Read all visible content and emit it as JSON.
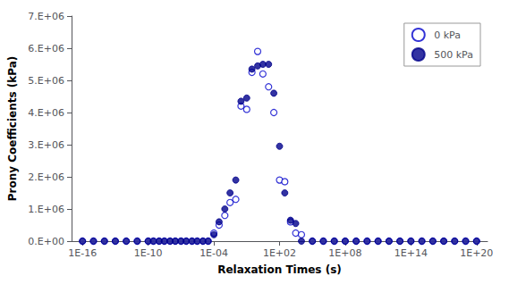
{
  "chart_data": {
    "type": "scatter",
    "xlabel": "Relaxation Times (s)",
    "ylabel": "Prony Coefficients (kPa)",
    "log": "x",
    "grid": false,
    "legend": "upper right",
    "xlim": [
      1e-17,
      1e+21
    ],
    "xticks": [
      {
        "value": 1e-16,
        "label": "1E-16"
      },
      {
        "value": 1e-10,
        "label": "1E-10"
      },
      {
        "value": 0.0001,
        "label": "1E-04"
      },
      {
        "value": 100.0,
        "label": "1E+02"
      },
      {
        "value": 100000000.0,
        "label": "1E+08"
      },
      {
        "value": 100000000000000.0,
        "label": "1E+14"
      },
      {
        "value": 1e+20,
        "label": "1E+20"
      }
    ],
    "ylim": [
      0,
      7000000.0
    ],
    "yticks": [
      {
        "value": 0,
        "label": "0.E+00"
      },
      {
        "value": 1000000.0,
        "label": "1.E+06"
      },
      {
        "value": 2000000.0,
        "label": "2.E+06"
      },
      {
        "value": 3000000.0,
        "label": "3.E+06"
      },
      {
        "value": 4000000.0,
        "label": "4.E+06"
      },
      {
        "value": 5000000.0,
        "label": "5.E+06"
      },
      {
        "value": 6000000.0,
        "label": "6.E+06"
      },
      {
        "value": 7000000.0,
        "label": "7.E+06"
      }
    ],
    "x": [
      1e-16,
      1e-15,
      1e-14,
      1e-13,
      1e-12,
      1e-11,
      1e-10,
      3e-10,
      1e-09,
      3e-09,
      1e-08,
      3e-08,
      1e-07,
      3e-07,
      1e-06,
      3e-06,
      1e-05,
      3e-05,
      0.0001,
      0.0003,
      0.001,
      0.003,
      0.01,
      0.03,
      0.1,
      0.3,
      1.0,
      3.0,
      10.0,
      30.0,
      100.0,
      300.0,
      1000.0,
      3000.0,
      10000.0,
      100000.0,
      1000000.0,
      10000000.0,
      100000000.0,
      1000000000.0,
      10000000000.0,
      100000000000.0,
      1000000000000.0,
      10000000000000.0,
      100000000000000.0,
      1000000000000000.0,
      1e+16,
      1e+17,
      1e+18,
      1e+19,
      1e+20
    ],
    "series": [
      {
        "name": "0 kPa",
        "color": "#0000CC",
        "marker": "circle_open",
        "values": [
          0,
          0,
          0,
          0,
          0,
          0,
          0,
          0,
          0,
          0,
          0,
          0,
          0,
          0,
          0,
          0,
          0,
          0,
          250000.0,
          500000.0,
          800000.0,
          1200000.0,
          1300000.0,
          4200000.0,
          4100000.0,
          5250000.0,
          5900000.0,
          5200000.0,
          4800000.0,
          4000000.0,
          1900000.0,
          1850000.0,
          600000.0,
          250000.0,
          200000.0,
          0,
          0,
          0,
          0,
          0,
          0,
          0,
          0,
          0,
          0,
          0,
          0,
          0,
          0,
          0,
          0
        ]
      },
      {
        "name": "500 kPa",
        "color": "#00008B",
        "marker": "circle",
        "values": [
          0,
          0,
          0,
          0,
          0,
          0,
          0,
          0,
          0,
          0,
          0,
          0,
          0,
          0,
          0,
          0,
          0,
          0,
          200000.0,
          600000.0,
          1000000.0,
          1500000.0,
          1900000.0,
          4350000.0,
          4450000.0,
          5350000.0,
          5450000.0,
          5500000.0,
          5500000.0,
          4600000.0,
          2950000.0,
          1500000.0,
          650000.0,
          550000.0,
          0,
          0,
          0,
          0,
          0,
          0,
          0,
          0,
          0,
          0,
          0,
          0,
          0,
          0,
          0,
          0,
          0
        ]
      }
    ]
  }
}
